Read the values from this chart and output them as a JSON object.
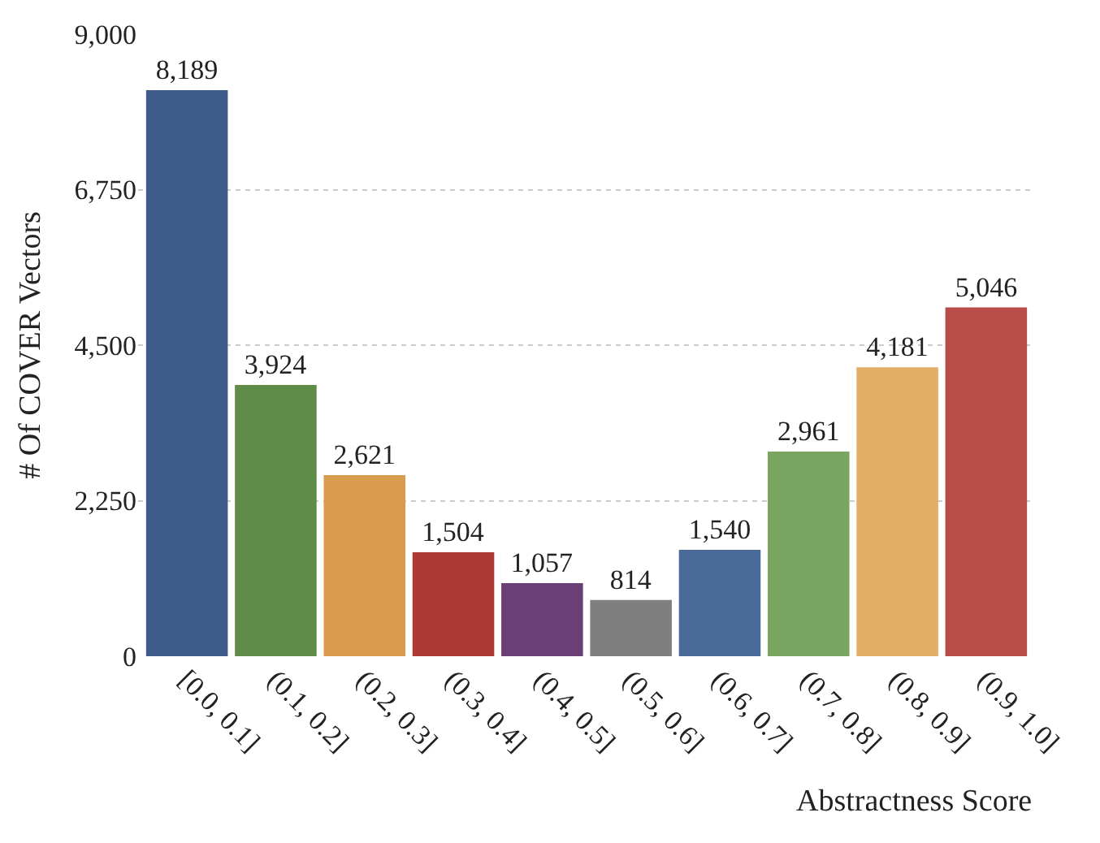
{
  "chart_data": {
    "type": "bar",
    "categories": [
      "[0.0, 0.1]",
      "(0.1, 0.2]",
      "(0.2, 0.3]",
      "(0.3, 0.4]",
      "(0.4, 0.5]",
      "(0.5, 0.6]",
      "(0.6, 0.7]",
      "(0.7, 0.8]",
      "(0.8, 0.9]",
      "(0.9, 1.0]"
    ],
    "values": [
      8189,
      3924,
      2621,
      1504,
      1057,
      814,
      1540,
      2961,
      4181,
      5046
    ],
    "colors": [
      "#3d5a8a",
      "#5f8c47",
      "#d99b4e",
      "#ad3834",
      "#6a3f76",
      "#7f7f7f",
      "#4a6a9a",
      "#7aa560",
      "#e0ae64",
      "#b84c48"
    ],
    "xlabel": "Abstractness Score",
    "ylabel": "# Of COVER Vectors",
    "ylim": [
      0,
      9000
    ],
    "yticks": [
      {
        "value": 0,
        "label": "0"
      },
      {
        "value": 2250,
        "label": "2,250"
      },
      {
        "value": 4500,
        "label": "4,500"
      },
      {
        "value": 6750,
        "label": "6,750"
      },
      {
        "value": 9000,
        "label": "9,000"
      }
    ],
    "value_labels": [
      "8,189",
      "3,924",
      "2,621",
      "1,504",
      "1,057",
      "814",
      "1,540",
      "2,961",
      "4,181",
      "5,046"
    ],
    "grid": "y",
    "legend": false
  }
}
